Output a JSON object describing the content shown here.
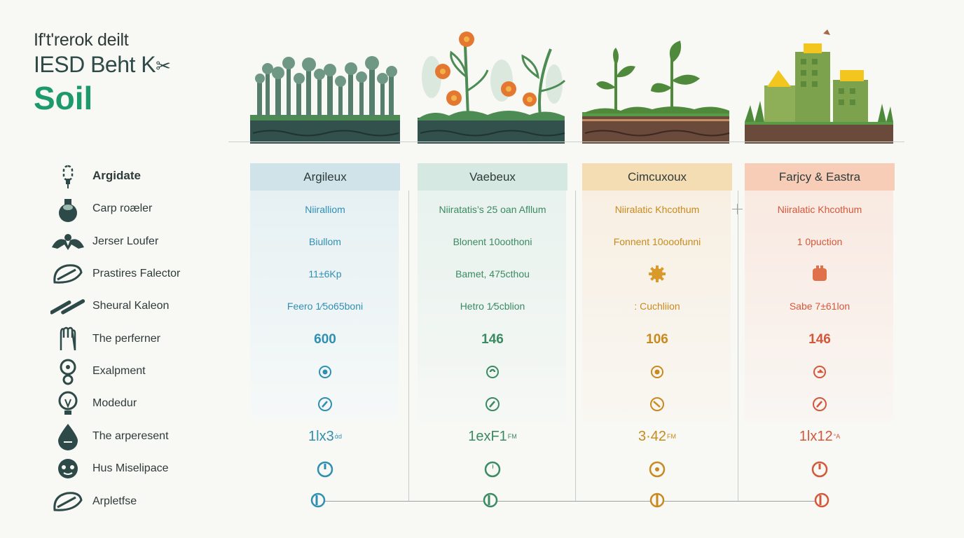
{
  "title": {
    "line1": "If't'rerok deilt",
    "line2": "IESD Beht K",
    "line3": "Soil"
  },
  "colors": {
    "accent_green": "#1d9a6c",
    "col1": "#2f8fb3",
    "col2": "#3a8a62",
    "col3": "#c88a1e",
    "col4": "#d4573a"
  },
  "columns": [
    {
      "header": "Argileux",
      "header_bg": "#cfe3e9",
      "body_bg": "#e9f2f4",
      "scene_icon": "forest-icon"
    },
    {
      "header": "Vaebeux",
      "header_bg": "#d5e8e2",
      "body_bg": "#ebf3ef",
      "scene_icon": "flowers-icon"
    },
    {
      "header": "Cimcuxoux",
      "header_bg": "#f5ddb3",
      "body_bg": "#f9f1e4",
      "scene_icon": "seedlings-icon"
    },
    {
      "header": "Farjcy & Eastra",
      "header_bg": "#f7cdb7",
      "body_bg": "#f9ebe4",
      "scene_icon": "city-icon"
    }
  ],
  "rows": [
    {
      "label": "Argidate",
      "icon": "plug-icon",
      "values": [
        "",
        "",
        "",
        ""
      ]
    },
    {
      "label": "Carp roæler",
      "icon": "sack-icon",
      "values": [
        "Niiralliom",
        "Niiratatis’s 25 oan Afllum",
        "Niiralatic Khcothum",
        "Niiralatic Khcothum"
      ]
    },
    {
      "label": "Jerser Loufer",
      "icon": "hands-icon",
      "values": [
        "Biullom",
        "Blonent  10oothoni",
        "Fonnent  10ooofunni",
        "1 0puction"
      ]
    },
    {
      "label": "Prastires Falector",
      "icon": "leaf-hand-icon",
      "values": [
        "11±6Kp",
        "Bamet, 475cthou",
        "",
        ""
      ]
    },
    {
      "label": "Sheural Kaleon",
      "icon": "roots-icon",
      "values": [
        "Feero 1⁄5o65boni",
        "Hetro 1⁄5cblion",
        ": Cuchliion",
        "Sabe 7±61lon"
      ]
    },
    {
      "label": "The perferner",
      "icon": "glove-icon",
      "values": [
        "600",
        "146",
        "106",
        "146"
      ]
    },
    {
      "label": "Exalpment",
      "icon": "probe-icon",
      "values": [
        "",
        "",
        "",
        ""
      ]
    },
    {
      "label": "Modedur",
      "icon": "bulb-icon",
      "values": [
        "",
        "",
        "",
        ""
      ]
    },
    {
      "label": "The arperesent",
      "icon": "drop-icon",
      "values": [
        "1lx3",
        "1exF1",
        "3·42",
        "1lx12"
      ],
      "sups": [
        "άd",
        "FM",
        "FM",
        "°A"
      ]
    },
    {
      "label": "Hus Miselipace",
      "icon": "face-icon",
      "values": [
        "",
        "",
        "",
        ""
      ]
    },
    {
      "label": "Arpletfse",
      "icon": "hand-leaf-icon",
      "values": [
        "",
        "",
        "",
        ""
      ]
    }
  ]
}
